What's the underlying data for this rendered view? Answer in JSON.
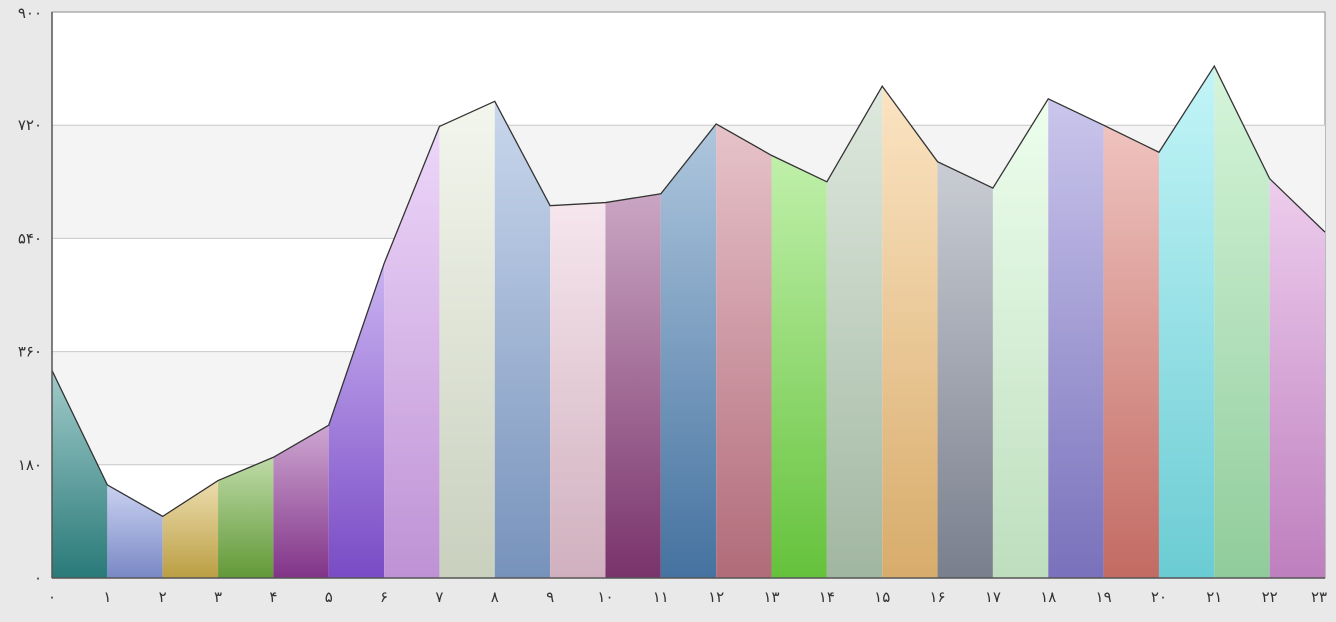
{
  "chart_data": {
    "type": "area",
    "x_ticks": [
      "۰",
      "۱",
      "۲",
      "۳",
      "۴",
      "۵",
      "۶",
      "۷",
      "۸",
      "۹",
      "۱۰",
      "۱۱",
      "۱۲",
      "۱۳",
      "۱۴",
      "۱۵",
      "۱۶",
      "۱۷",
      "۱۸",
      "۱۹",
      "۲۰",
      "۲۱",
      "۲۲",
      "۲۳"
    ],
    "y_ticks": [
      "۰",
      "۱۸۰",
      "۳۶۰",
      "۵۴۰",
      "۷۲۰",
      "۹۰۰"
    ],
    "y_tick_values": [
      0,
      180,
      360,
      540,
      720,
      900
    ],
    "ylim": [
      0,
      900
    ],
    "xlim": [
      0,
      23
    ],
    "x": [
      0,
      1,
      2,
      3,
      4,
      5,
      6,
      7,
      8,
      9,
      10,
      11,
      12,
      13,
      14,
      15,
      16,
      17,
      18,
      19,
      20,
      21,
      22,
      23
    ],
    "values": [
      330,
      148,
      98,
      155,
      192,
      243,
      500,
      718,
      758,
      592,
      597,
      611,
      722,
      672,
      630,
      782,
      662,
      620,
      762,
      720,
      677,
      814,
      635,
      550
    ],
    "grid": true,
    "colors": [
      "#2f8b8a",
      "#8a9be0",
      "#d4b44c",
      "#6fae3e",
      "#933b9a",
      "#8a55e0",
      "#d8a6f2",
      "#e4ecd8",
      "#87a6d4",
      "#ecc8d8",
      "#8a3a7a",
      "#4e82b6",
      "#c97a8a",
      "#73dd44",
      "#b7cfb7",
      "#f6c47a",
      "#8a90a0",
      "#d8fcd8",
      "#8a80d4",
      "#dc7a70",
      "#7ae8f0",
      "#a4e8b0",
      "#d890d8"
    ]
  }
}
